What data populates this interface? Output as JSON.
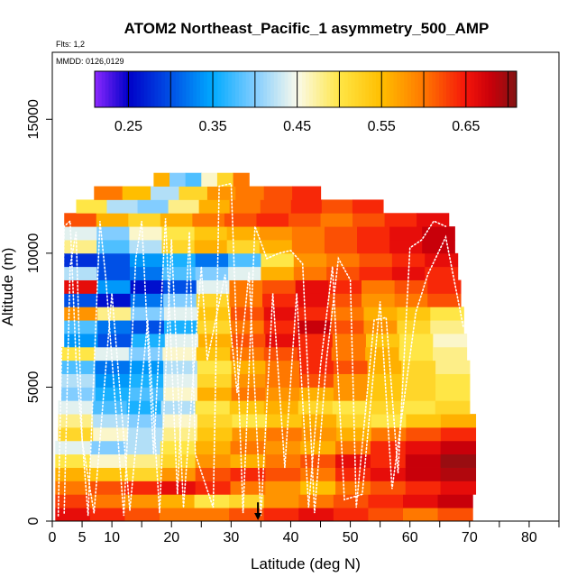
{
  "chart_data": {
    "type": "heatmap",
    "title": "ATOM2 Northeast_Pacific_1 asymmetry_500_AMP",
    "flights_label": "Flts: 1,2",
    "dates_label": "MMDD: 0126,0129",
    "xlabel": "Latitude (deg N)",
    "ylabel": "Altitude (m)",
    "xlim": [
      0,
      85
    ],
    "ylim": [
      0,
      17500
    ],
    "x_ticks": [
      0,
      5,
      10,
      15,
      20,
      25,
      30,
      35,
      40,
      45,
      50,
      55,
      60,
      65,
      70,
      75,
      80,
      85
    ],
    "x_tick_labels": [
      "0",
      "5",
      "10",
      "20",
      "30",
      "40",
      "50",
      "60",
      "70",
      "80"
    ],
    "x_labeled_ticks": [
      0,
      5,
      10,
      20,
      30,
      40,
      50,
      60,
      70,
      80
    ],
    "y_ticks": [
      0,
      5000,
      10000,
      15000
    ],
    "y_tick_labels": [
      "0",
      "5000",
      "10000",
      "15000"
    ],
    "colorbar": {
      "min": 0.21,
      "max": 0.71,
      "tick_values": [
        0.25,
        0.35,
        0.45,
        0.55,
        0.65
      ],
      "tick_labels": [
        "0.25",
        "0.35",
        "0.45",
        "0.55",
        "0.65"
      ],
      "divisions": [
        0.25,
        0.3,
        0.35,
        0.4,
        0.45,
        0.5,
        0.55,
        0.6,
        0.65,
        0.7
      ]
    },
    "marker": {
      "latitude": 34.5,
      "altitude": 700,
      "label": "arrow"
    },
    "curtain_rows": [
      {
        "alt_low": 0,
        "alt_high": 500,
        "lat_start": 0.5,
        "lat_end": 70.5,
        "values": [
          0.66,
          0.64,
          0.62,
          0.6,
          0.6,
          0.62,
          0.64,
          0.66,
          0.64,
          0.62,
          0.6,
          0.62
        ]
      },
      {
        "alt_low": 500,
        "alt_high": 1000,
        "lat_start": 0.5,
        "lat_end": 70.5,
        "values": [
          0.63,
          0.6,
          0.58,
          0.56,
          0.5,
          0.52,
          0.58,
          0.6,
          0.62,
          0.64,
          0.66,
          0.68
        ]
      },
      {
        "alt_low": 1000,
        "alt_high": 1500,
        "lat_start": 0.5,
        "lat_end": 71,
        "values": [
          0.6,
          0.62,
          0.64,
          0.66,
          0.64,
          0.6,
          0.58,
          0.55,
          0.6,
          0.62,
          0.64,
          0.66
        ]
      },
      {
        "alt_low": 1500,
        "alt_high": 2000,
        "lat_start": 0.5,
        "lat_end": 71,
        "values": [
          0.56,
          0.54,
          0.52,
          0.58,
          0.62,
          0.64,
          0.62,
          0.6,
          0.64,
          0.66,
          0.68,
          0.69
        ]
      },
      {
        "alt_low": 2000,
        "alt_high": 2500,
        "lat_start": 0.5,
        "lat_end": 71,
        "values": [
          0.5,
          0.46,
          0.48,
          0.52,
          0.58,
          0.56,
          0.6,
          0.62,
          0.66,
          0.64,
          0.68,
          0.7
        ]
      },
      {
        "alt_low": 2500,
        "alt_high": 3000,
        "lat_start": 0.5,
        "lat_end": 71,
        "values": [
          0.44,
          0.4,
          0.42,
          0.5,
          0.56,
          0.6,
          0.58,
          0.56,
          0.6,
          0.64,
          0.66,
          0.68
        ]
      },
      {
        "alt_low": 3000,
        "alt_high": 3500,
        "lat_start": 1,
        "lat_end": 71,
        "values": [
          0.52,
          0.46,
          0.42,
          0.48,
          0.54,
          0.58,
          0.6,
          0.58,
          0.56,
          0.6,
          0.62,
          0.64
        ]
      },
      {
        "alt_low": 3500,
        "alt_high": 4000,
        "lat_start": 1,
        "lat_end": 71,
        "values": [
          0.48,
          0.42,
          0.4,
          0.46,
          0.52,
          0.5,
          0.54,
          0.56,
          0.52,
          0.5,
          0.54,
          0.56
        ]
      },
      {
        "alt_low": 4000,
        "alt_high": 4500,
        "lat_start": 1,
        "lat_end": 70,
        "values": [
          0.44,
          0.38,
          0.36,
          0.42,
          0.5,
          0.54,
          0.56,
          0.52,
          0.5,
          0.52,
          0.5,
          0.52
        ]
      },
      {
        "alt_low": 4500,
        "alt_high": 5000,
        "lat_start": 1.5,
        "lat_end": 70,
        "values": [
          0.4,
          0.36,
          0.38,
          0.46,
          0.56,
          0.6,
          0.58,
          0.56,
          0.58,
          0.54,
          0.52,
          0.5
        ]
      },
      {
        "alt_low": 5000,
        "alt_high": 5500,
        "lat_start": 1.5,
        "lat_end": 70,
        "values": [
          0.42,
          0.34,
          0.36,
          0.44,
          0.52,
          0.58,
          0.6,
          0.62,
          0.58,
          0.54,
          0.52,
          0.5
        ]
      },
      {
        "alt_low": 5500,
        "alt_high": 6000,
        "lat_start": 1.5,
        "lat_end": 70,
        "values": [
          0.38,
          0.32,
          0.34,
          0.42,
          0.5,
          0.56,
          0.6,
          0.64,
          0.62,
          0.56,
          0.52,
          0.48
        ]
      },
      {
        "alt_low": 6000,
        "alt_high": 6500,
        "lat_start": 1.5,
        "lat_end": 69.5,
        "values": [
          0.5,
          0.44,
          0.4,
          0.46,
          0.54,
          0.6,
          0.62,
          0.64,
          0.6,
          0.56,
          0.5,
          0.48
        ]
      },
      {
        "alt_low": 6500,
        "alt_high": 7000,
        "lat_start": 2,
        "lat_end": 69.5,
        "values": [
          0.34,
          0.3,
          0.36,
          0.44,
          0.56,
          0.62,
          0.66,
          0.64,
          0.6,
          0.54,
          0.5,
          0.46
        ]
      },
      {
        "alt_low": 7000,
        "alt_high": 7500,
        "lat_start": 2,
        "lat_end": 69,
        "values": [
          0.38,
          0.32,
          0.3,
          0.36,
          0.52,
          0.6,
          0.64,
          0.68,
          0.62,
          0.58,
          0.52,
          0.48
        ]
      },
      {
        "alt_low": 7500,
        "alt_high": 8000,
        "lat_start": 2,
        "lat_end": 69,
        "values": [
          0.58,
          0.48,
          0.4,
          0.44,
          0.54,
          0.62,
          0.66,
          0.64,
          0.6,
          0.56,
          0.54,
          0.5
        ]
      },
      {
        "alt_low": 8000,
        "alt_high": 8500,
        "lat_start": 2,
        "lat_end": 68.5,
        "values": [
          0.3,
          0.26,
          0.32,
          0.4,
          0.52,
          0.6,
          0.64,
          0.66,
          0.62,
          0.58,
          0.6,
          0.62
        ]
      },
      {
        "alt_low": 8500,
        "alt_high": 9000,
        "lat_start": 2,
        "lat_end": 68.5,
        "values": [
          0.66,
          0.34,
          0.26,
          0.3,
          0.44,
          0.6,
          0.62,
          0.66,
          0.64,
          0.6,
          0.62,
          0.64
        ]
      },
      {
        "alt_low": 9000,
        "alt_high": 9500,
        "lat_start": 2,
        "lat_end": 68,
        "values": [
          0.42,
          0.3,
          0.32,
          0.38,
          0.4,
          0.44,
          0.56,
          0.6,
          0.62,
          0.64,
          0.66,
          0.64
        ]
      },
      {
        "alt_low": 9500,
        "alt_high": 10000,
        "lat_start": 2,
        "lat_end": 68,
        "values": [
          0.28,
          0.3,
          0.34,
          0.36,
          0.32,
          0.38,
          0.5,
          0.58,
          0.6,
          0.62,
          0.64,
          0.66
        ]
      },
      {
        "alt_low": 10000,
        "alt_high": 10500,
        "lat_start": 2,
        "lat_end": 67.5,
        "values": [
          0.48,
          0.38,
          0.42,
          0.52,
          0.56,
          0.52,
          0.56,
          0.6,
          0.62,
          0.64,
          0.66,
          0.68
        ]
      },
      {
        "alt_low": 10500,
        "alt_high": 11000,
        "lat_start": 2,
        "lat_end": 67.5,
        "values": [
          0.44,
          0.4,
          0.46,
          0.5,
          0.54,
          0.56,
          0.58,
          0.6,
          0.62,
          0.64,
          0.66,
          0.68
        ]
      },
      {
        "alt_low": 11000,
        "alt_high": 11500,
        "lat_start": 2,
        "lat_end": 66.5,
        "values": [
          0.62,
          0.56,
          0.52,
          0.56,
          0.6,
          0.62,
          0.64,
          0.62,
          0.6,
          0.62,
          0.64,
          0.66
        ]
      },
      {
        "alt_low": 11500,
        "alt_high": 12000,
        "lat_start": 4,
        "lat_end": 55.5,
        "values": [
          0.5,
          0.42,
          0.4,
          0.48,
          0.56,
          0.6,
          0.62,
          0.64,
          0.62,
          0.64
        ]
      },
      {
        "alt_low": 12000,
        "alt_high": 12500,
        "lat_start": 7,
        "lat_end": 45,
        "values": [
          0.6,
          0.55,
          0.42,
          0.52,
          0.58,
          0.6,
          0.62,
          0.64
        ]
      },
      {
        "alt_low": 12500,
        "alt_high": 13000,
        "lat_start": 17,
        "lat_end": 33,
        "values": [
          0.56,
          0.4,
          0.38,
          0.46,
          0.52,
          0.6
        ]
      }
    ],
    "flight_track_1": [
      [
        1,
        200
      ],
      [
        2,
        11000
      ],
      [
        3,
        11200
      ],
      [
        4,
        6000
      ],
      [
        6,
        200
      ],
      [
        8,
        11200
      ],
      [
        9,
        9000
      ],
      [
        12,
        200
      ],
      [
        14,
        9800
      ],
      [
        15,
        11200
      ],
      [
        17,
        2500
      ],
      [
        19,
        11300
      ],
      [
        21,
        1000
      ],
      [
        23,
        10800
      ],
      [
        24,
        2500
      ],
      [
        27,
        500
      ],
      [
        28,
        12500
      ],
      [
        30,
        12600
      ],
      [
        32,
        300
      ],
      [
        34,
        11000
      ],
      [
        36,
        9800
      ],
      [
        38,
        10000
      ],
      [
        40,
        10100
      ],
      [
        42,
        9600
      ],
      [
        44,
        300
      ],
      [
        46,
        6000
      ],
      [
        48,
        9800
      ],
      [
        50,
        9000
      ],
      [
        51,
        500
      ],
      [
        54,
        7500
      ],
      [
        56,
        7600
      ],
      [
        58,
        1800
      ],
      [
        60,
        10200
      ],
      [
        62,
        10500
      ],
      [
        64,
        11200
      ],
      [
        66,
        11000
      ]
    ],
    "flight_track_2": [
      [
        2,
        300
      ],
      [
        3,
        9500
      ],
      [
        4,
        10800
      ],
      [
        5,
        3000
      ],
      [
        7,
        300
      ],
      [
        10,
        8500
      ],
      [
        13,
        400
      ],
      [
        16,
        7500
      ],
      [
        18,
        300
      ],
      [
        20,
        10500
      ],
      [
        22,
        500
      ],
      [
        25,
        9500
      ],
      [
        26,
        6000
      ],
      [
        29,
        9200
      ],
      [
        31,
        4800
      ],
      [
        33,
        9300
      ],
      [
        35,
        200
      ],
      [
        37,
        8500
      ],
      [
        39,
        2000
      ],
      [
        41,
        8500
      ],
      [
        43,
        500
      ],
      [
        45,
        5800
      ],
      [
        47,
        9500
      ],
      [
        49,
        800
      ],
      [
        52,
        1000
      ],
      [
        55,
        8200
      ],
      [
        57,
        1200
      ],
      [
        61,
        7800
      ],
      [
        63,
        9200
      ],
      [
        66,
        10600
      ],
      [
        69,
        7200
      ]
    ]
  }
}
